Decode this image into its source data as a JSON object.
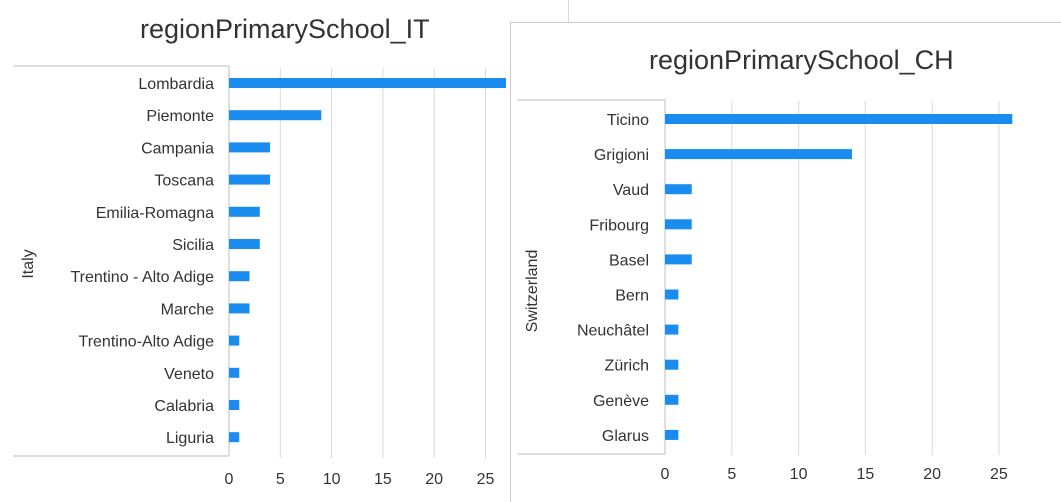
{
  "chart_data": [
    {
      "type": "bar",
      "orientation": "horizontal",
      "title": "regionPrimarySchool_IT",
      "ylabel": "Italy",
      "xlabel": "",
      "categories": [
        "Lombardia",
        "Piemonte",
        "Campania",
        "Toscana",
        "Emilia-Romagna",
        "Sicilia",
        "Trentino - Alto Adige",
        "Marche",
        "Trentino-Alto Adige",
        "Veneto",
        "Calabria",
        "Liguria"
      ],
      "values": [
        27,
        9,
        4,
        4,
        3,
        3,
        2,
        2,
        1,
        1,
        1,
        1
      ],
      "xticks": [
        0,
        5,
        10,
        15,
        20,
        25
      ],
      "xlim": [
        0,
        27
      ],
      "grid": true,
      "color": "#1a8cf0"
    },
    {
      "type": "bar",
      "orientation": "horizontal",
      "title": "regionPrimarySchool_CH",
      "ylabel": "Switzerland",
      "xlabel": "",
      "categories": [
        "Ticino",
        "Grigioni",
        "Vaud",
        "Fribourg",
        "Basel",
        "Bern",
        "Neuchâtel",
        "Zürich",
        "Genève",
        "Glarus"
      ],
      "values": [
        26,
        14,
        2,
        2,
        2,
        1,
        1,
        1,
        1,
        1
      ],
      "xticks": [
        0,
        5,
        10,
        15,
        20,
        25
      ],
      "xlim": [
        0,
        28
      ],
      "grid": true,
      "color": "#1a8cf0"
    }
  ]
}
